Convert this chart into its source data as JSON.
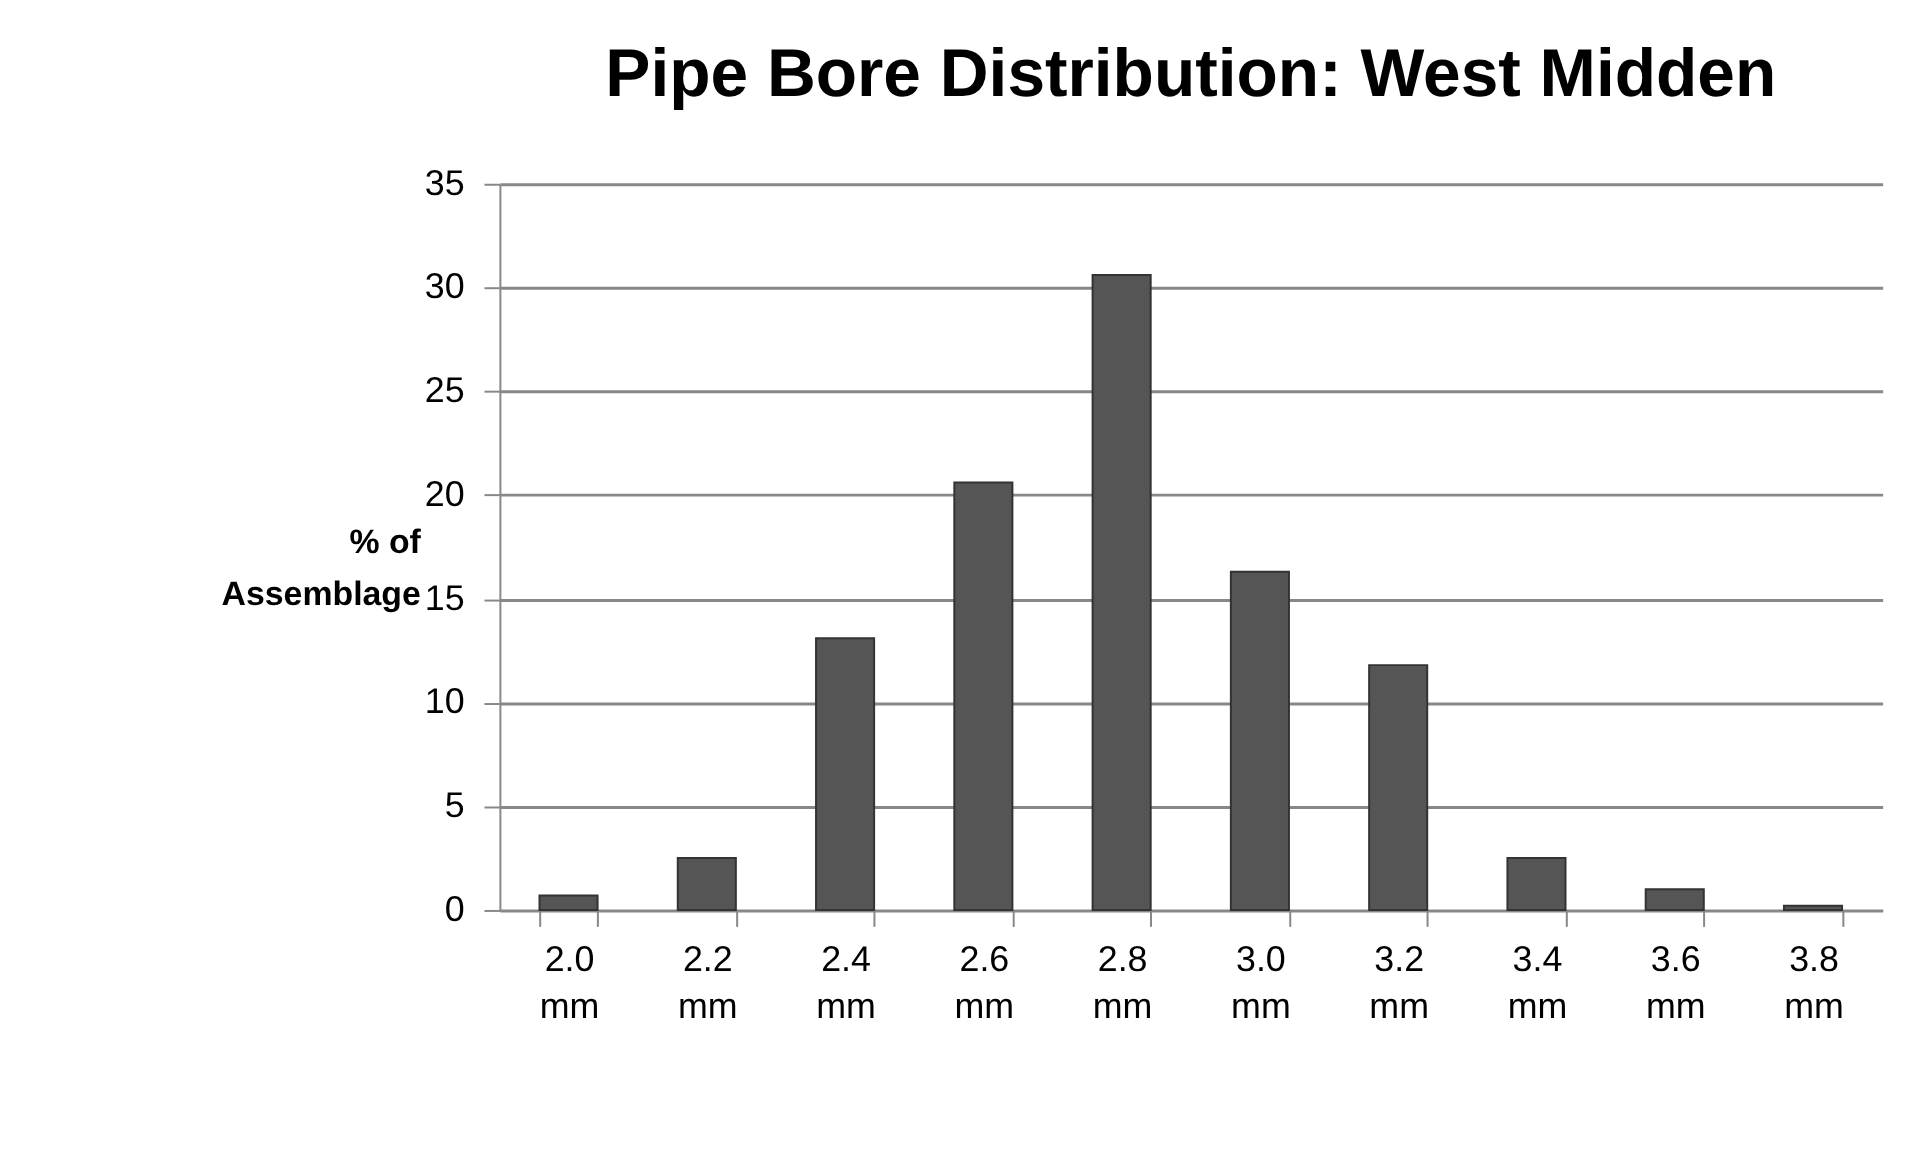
{
  "chart_data": {
    "type": "bar",
    "title": "Pipe Bore Distribution: West Midden",
    "ylabel": "% of Assemblage",
    "categories": [
      "2.0 mm",
      "2.2 mm",
      "2.4 mm",
      "2.6 mm",
      "2.8 mm",
      "3.0 mm",
      "3.2 mm",
      "3.4 mm",
      "3.6 mm",
      "3.8 mm"
    ],
    "values": [
      0.7,
      2.5,
      13.1,
      20.6,
      30.6,
      16.3,
      11.8,
      2.5,
      1.0,
      0.2
    ],
    "color": "#555555",
    "ylim": [
      0,
      35
    ],
    "yticks": [
      0,
      5,
      10,
      15,
      20,
      25,
      30,
      35
    ],
    "grid": "y"
  }
}
